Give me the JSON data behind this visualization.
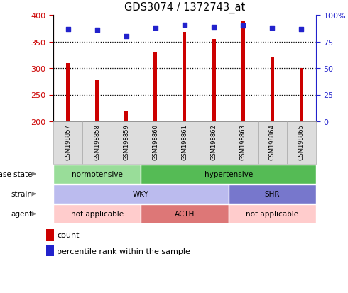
{
  "title": "GDS3074 / 1372743_at",
  "samples": [
    "GSM198857",
    "GSM198858",
    "GSM198859",
    "GSM198860",
    "GSM198861",
    "GSM198862",
    "GSM198863",
    "GSM198864",
    "GSM198865"
  ],
  "counts": [
    310,
    278,
    220,
    330,
    368,
    355,
    388,
    321,
    300
  ],
  "percentile_ranks": [
    87,
    86,
    80,
    88,
    91,
    89,
    90,
    88,
    87
  ],
  "ylim_left": [
    200,
    400
  ],
  "ylim_right": [
    0,
    100
  ],
  "yticks_left": [
    200,
    250,
    300,
    350,
    400
  ],
  "yticks_right": [
    0,
    25,
    50,
    75,
    100
  ],
  "bar_color": "#cc0000",
  "dot_color": "#2222cc",
  "bar_bottom": 200,
  "bar_width": 0.12,
  "disease_state": [
    {
      "label": "normotensive",
      "start": 0,
      "end": 3,
      "color": "#99dd99"
    },
    {
      "label": "hypertensive",
      "start": 3,
      "end": 9,
      "color": "#55bb55"
    }
  ],
  "strain": [
    {
      "label": "WKY",
      "start": 0,
      "end": 6,
      "color": "#bbbbee"
    },
    {
      "label": "SHR",
      "start": 6,
      "end": 9,
      "color": "#7777cc"
    }
  ],
  "agent": [
    {
      "label": "not applicable",
      "start": 0,
      "end": 3,
      "color": "#ffcccc"
    },
    {
      "label": "ACTH",
      "start": 3,
      "end": 6,
      "color": "#dd7777"
    },
    {
      "label": "not applicable",
      "start": 6,
      "end": 9,
      "color": "#ffcccc"
    }
  ],
  "left_axis_color": "#cc0000",
  "right_axis_color": "#2222cc",
  "row_labels": [
    "disease state",
    "strain",
    "agent"
  ],
  "legend_count_color": "#cc0000",
  "legend_dot_color": "#2222cc",
  "grid_ticks": [
    250,
    300,
    350
  ],
  "label_box_color": "#dddddd",
  "label_box_edgecolor": "#aaaaaa"
}
